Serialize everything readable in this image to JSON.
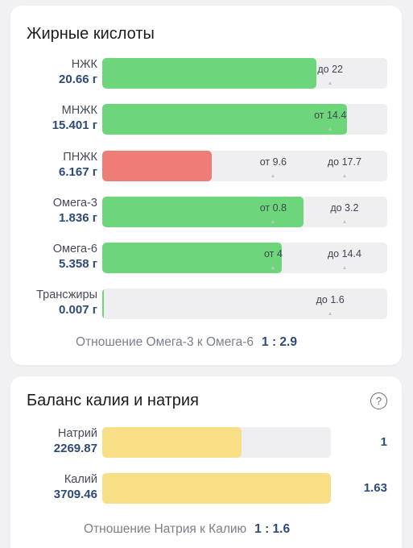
{
  "fats": {
    "title": "Жирные кислоты",
    "rows": [
      {
        "name": "НЖК",
        "value": "20.66 г",
        "fill": 0.75,
        "color": "green",
        "markers": [
          {
            "text": "до 22",
            "at": 0.8
          }
        ]
      },
      {
        "name": "МНЖК",
        "value": "15.401 г",
        "fill": 0.86,
        "color": "green",
        "markers": [
          {
            "text": "от 14.4",
            "at": 0.8
          }
        ]
      },
      {
        "name": "ПНЖК",
        "value": "6.167 г",
        "fill": 0.385,
        "color": "red",
        "markers": [
          {
            "text": "от 9.6",
            "at": 0.6
          },
          {
            "text": "до 17.7",
            "at": 0.85
          }
        ]
      },
      {
        "name": "Омега-3",
        "value": "1.836 г",
        "fill": 0.705,
        "color": "green",
        "markers": [
          {
            "text": "от 0.8",
            "at": 0.6
          },
          {
            "text": "до 3.2",
            "at": 0.85
          }
        ]
      },
      {
        "name": "Омега-6",
        "value": "5.358 г",
        "fill": 0.63,
        "color": "green",
        "markers": [
          {
            "text": "от 4",
            "at": 0.6
          },
          {
            "text": "до 14.4",
            "at": 0.85
          }
        ]
      },
      {
        "name": "Трансжиры",
        "value": "0.007 г",
        "fill": 0.005,
        "color": "green",
        "markers": [
          {
            "text": "до 1.6",
            "at": 0.8
          }
        ]
      }
    ],
    "ratio_label": "Отношение Омега-3 к Омега-6",
    "ratio_value": "1 : 2.9"
  },
  "kna": {
    "title": "Баланс калия и натрия",
    "help_icon": "question-circle-icon",
    "help_glyph": "?",
    "rows": [
      {
        "name": "Натрий",
        "value": "2269.87",
        "fill": 0.61,
        "color": "yellow",
        "side": "1"
      },
      {
        "name": "Калий",
        "value": "3709.46",
        "fill": 1.0,
        "color": "yellow",
        "side": "1.63"
      }
    ],
    "ratio_label": "Отношение Натрия к Калию",
    "ratio_value": "1 : 1.6"
  }
}
